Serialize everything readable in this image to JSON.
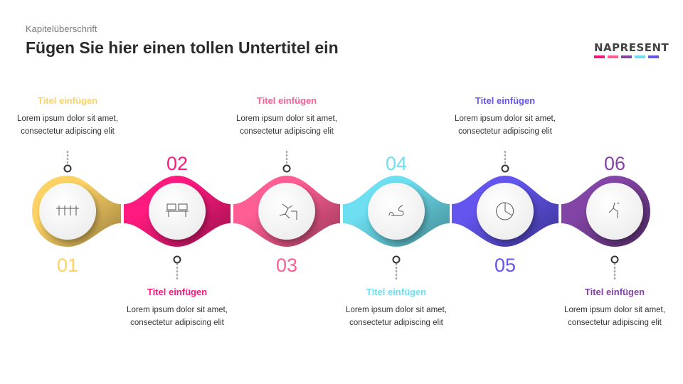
{
  "header": {
    "kicker": "Kapitelüberschrift",
    "title": "Fügen Sie hier einen tollen Untertitel ein"
  },
  "logo": {
    "text": "NAPRESENT",
    "bar_colors": [
      "#F0187A",
      "#FF5E94",
      "#8345A5",
      "#6DDFF0",
      "#6355EE"
    ]
  },
  "steps": [
    {
      "number": "01",
      "title": "Titel einfügen",
      "body": "Lorem ipsum dolor sit amet, consectetur adipiscing elit",
      "color": "#FDD265",
      "icon": "team-icon",
      "text_position": "top"
    },
    {
      "number": "02",
      "title": "Titel einfügen",
      "body": "Lorem ipsum dolor sit amet, consectetur adipiscing elit",
      "color": "#FF1A7F",
      "icon": "workstation-icon",
      "text_position": "bottom"
    },
    {
      "number": "03",
      "title": "Titel einfügen",
      "body": "Lorem ipsum dolor sit amet, consectetur adipiscing elit",
      "color": "#FF5E94",
      "icon": "hurdle-runner-icon",
      "text_position": "top"
    },
    {
      "number": "04",
      "title": "Titel einfügen",
      "body": "Lorem ipsum dolor sit amet, consectetur adipiscing elit",
      "color": "#6DDFF0",
      "icon": "route-pins-icon",
      "text_position": "bottom"
    },
    {
      "number": "05",
      "title": "Titel einfügen",
      "body": "Lorem ipsum dolor sit amet, consectetur adipiscing elit",
      "color": "#6355EE",
      "icon": "pie-chart-icon",
      "text_position": "top"
    },
    {
      "number": "06",
      "title": "Titel einfügen",
      "body": "Lorem ipsum dolor sit amet, consectetur adipiscing elit",
      "color": "#8345A5",
      "icon": "climber-icon",
      "text_position": "bottom"
    }
  ]
}
